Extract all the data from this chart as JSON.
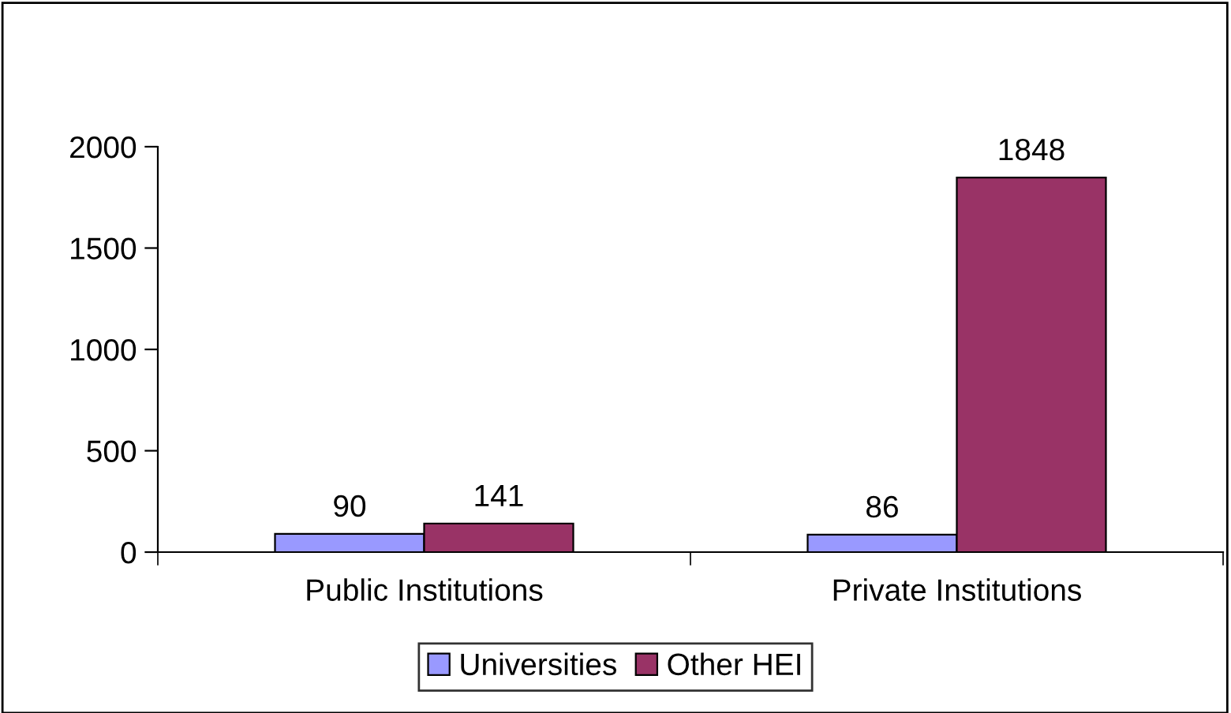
{
  "chart_data": {
    "type": "bar",
    "categories": [
      "Public Institutions",
      "Private Institutions"
    ],
    "series": [
      {
        "name": "Universities",
        "color": "#9999ff",
        "values": [
          90,
          86
        ]
      },
      {
        "name": "Other HEI",
        "color": "#993366",
        "values": [
          141,
          1848
        ]
      }
    ],
    "ylim": [
      0,
      2000
    ],
    "yticks": [
      0,
      500,
      1000,
      1500,
      2000
    ],
    "grid": false,
    "legend": "bottom",
    "data_labels": true
  }
}
